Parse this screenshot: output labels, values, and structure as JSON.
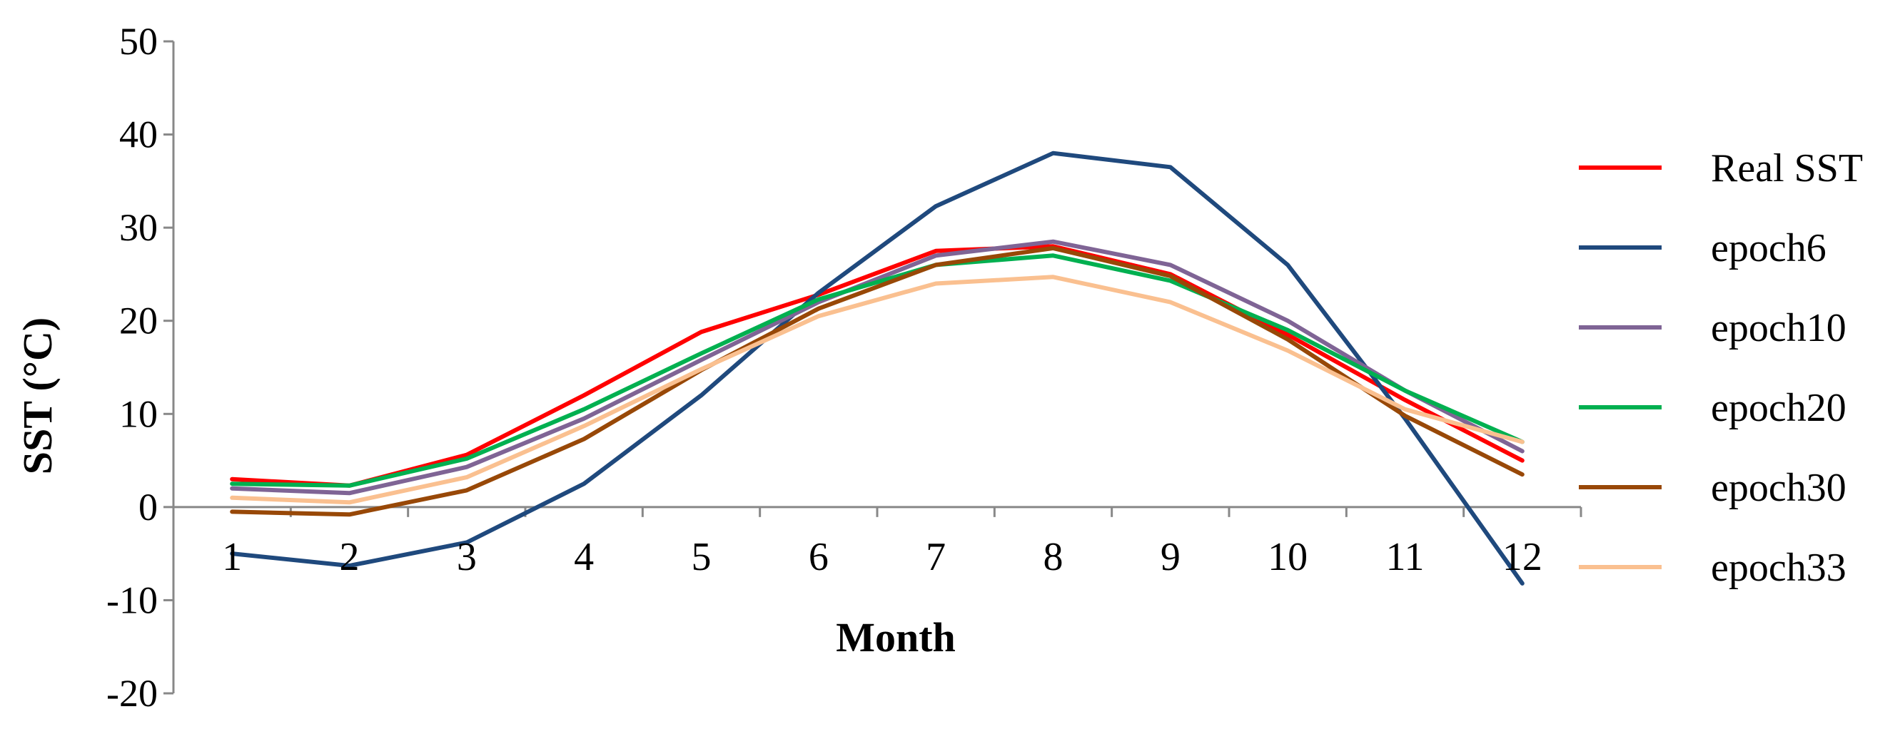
{
  "chart_data": {
    "type": "line",
    "title": "",
    "xlabel": "Month",
    "ylabel": "SST (°C)",
    "categories": [
      "1",
      "2",
      "3",
      "4",
      "5",
      "6",
      "7",
      "8",
      "9",
      "10",
      "11",
      "12"
    ],
    "yticks": [
      "-20",
      "-10",
      "0",
      "10",
      "20",
      "30",
      "40",
      "50"
    ],
    "ylim": [
      -20,
      50
    ],
    "grid": false,
    "legend_position": "right",
    "series": [
      {
        "name": "Real SST",
        "color": "#ff0000",
        "values": [
          3.0,
          2.3,
          5.6,
          12.0,
          18.8,
          22.8,
          27.5,
          28.0,
          25.0,
          18.5,
          11.5,
          5.0
        ]
      },
      {
        "name": "epoch6",
        "color": "#1f497d",
        "values": [
          -5.0,
          -6.3,
          -3.8,
          2.5,
          12.0,
          23.0,
          32.3,
          38.0,
          36.5,
          26.0,
          9.5,
          -8.2
        ]
      },
      {
        "name": "epoch10",
        "color": "#7f6495",
        "values": [
          2.0,
          1.5,
          4.3,
          9.5,
          15.8,
          22.0,
          27.0,
          28.5,
          26.0,
          20.0,
          12.5,
          6.0
        ]
      },
      {
        "name": "epoch20",
        "color": "#00b050",
        "values": [
          2.5,
          2.3,
          5.2,
          10.5,
          16.5,
          22.3,
          26.0,
          27.0,
          24.3,
          19.0,
          12.5,
          7.0
        ]
      },
      {
        "name": "epoch30",
        "color": "#984807",
        "values": [
          -0.5,
          -0.8,
          1.8,
          7.3,
          14.7,
          21.3,
          26.0,
          27.8,
          24.8,
          18.0,
          9.8,
          3.5
        ]
      },
      {
        "name": "epoch33",
        "color": "#fac090",
        "values": [
          1.0,
          0.5,
          3.2,
          8.7,
          14.8,
          20.5,
          24.0,
          24.7,
          22.0,
          16.8,
          10.5,
          7.0
        ]
      }
    ]
  }
}
